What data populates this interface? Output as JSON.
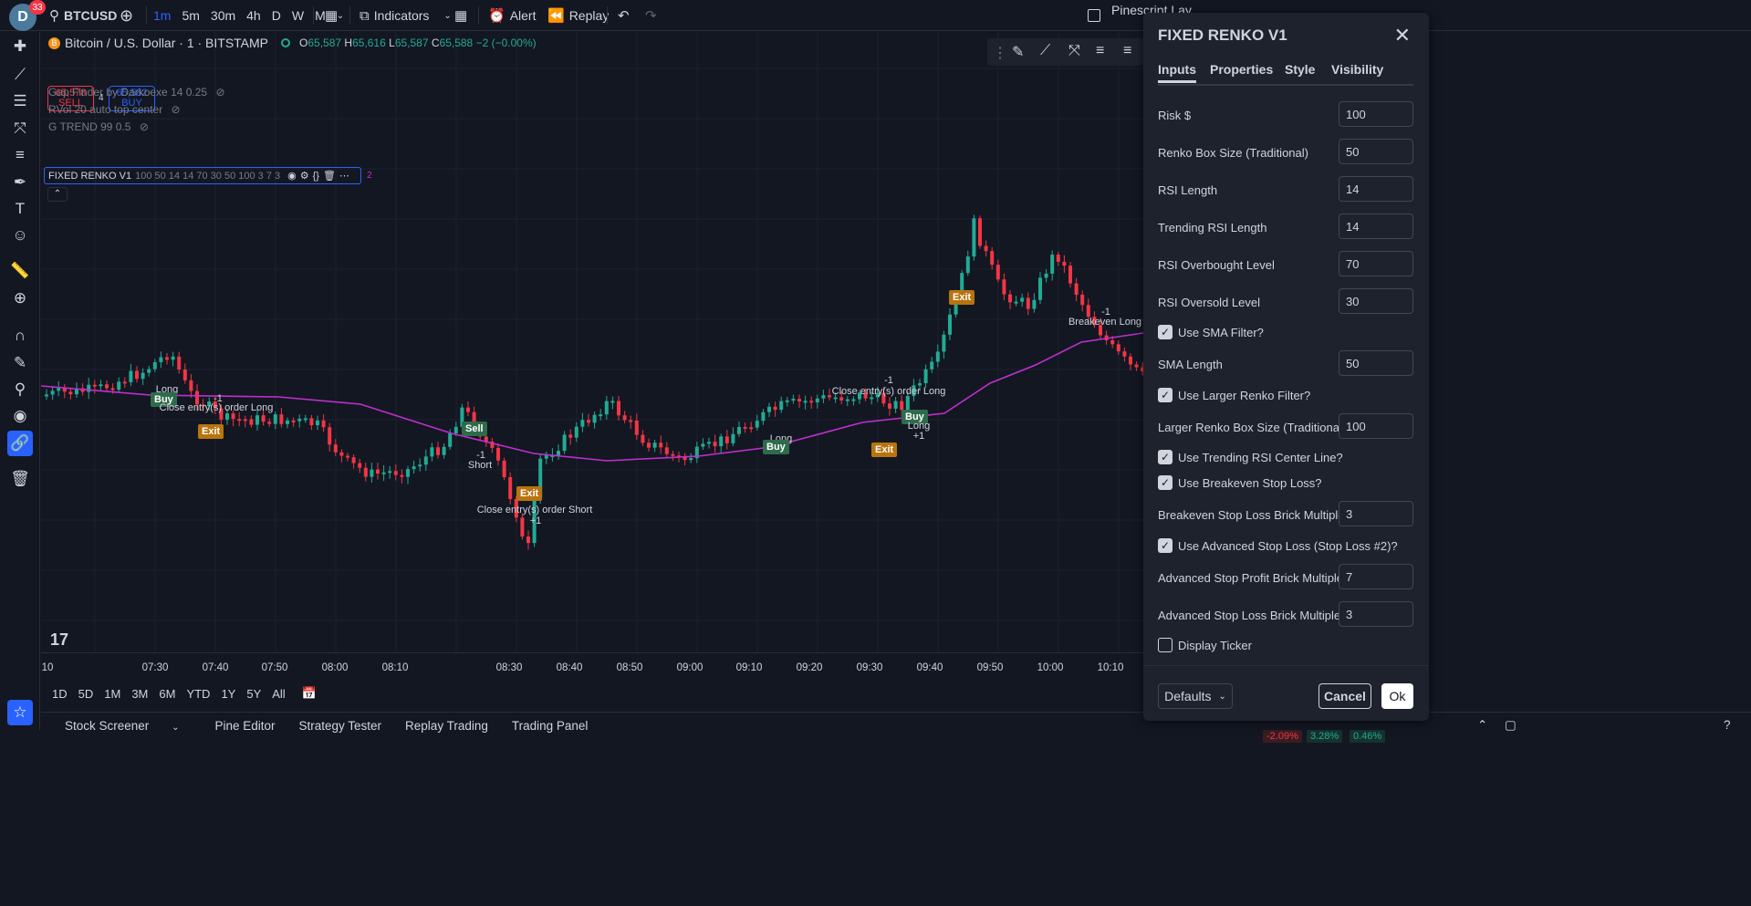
{
  "header": {
    "avatar_letter": "D",
    "notifications": "33",
    "symbol": "BTCUSD",
    "intervals": [
      "1m",
      "5m",
      "30m",
      "4h",
      "D",
      "W",
      "M"
    ],
    "active_interval": "1m",
    "indicators_label": "Indicators",
    "alert_label": "Alert",
    "replay_label": "Replay",
    "pinescript_label": "Pinescript Lay"
  },
  "chart": {
    "title": "Bitcoin / U.S. Dollar · 1 · BITSTAMP",
    "ohlc": [
      {
        "label": "O",
        "value": "65,587"
      },
      {
        "label": "H",
        "value": "65,616"
      },
      {
        "label": "L",
        "value": "65,587"
      },
      {
        "label": "C",
        "value": "65,588"
      }
    ],
    "change": "−2 (−0.00%)",
    "sell_price": "65,578",
    "sell_label": "SELL",
    "spread": "4",
    "buy_price": "65,582",
    "buy_label": "BUY",
    "indicators": [
      "Gap Finder by Darkoexe 14 0.25",
      "RVol 20 auto top center",
      "G TREND 99 0.5"
    ],
    "active_indicator": {
      "name": "FIXED RENKO V1",
      "params": "100 50 14 14 70 30 50 100 3 7 3",
      "count": "2"
    },
    "time_labels": [
      "10",
      "07:30",
      "07:40",
      "07:50",
      "08:00",
      "08:10",
      "08:30",
      "08:40",
      "08:50",
      "09:00",
      "09:10",
      "09:20",
      "09:30",
      "09:40",
      "09:50",
      "10:00",
      "10:10"
    ],
    "annotations": {
      "long1": "Long",
      "buy1": "Buy",
      "close_long_1": "Close entry(s) order Long",
      "minus1_a": "-1",
      "exit1": "Exit",
      "sell1": "Sell",
      "minus1_b": "-1",
      "short1": "Short",
      "exit2": "Exit",
      "close_short": "Close entry(s) order Short",
      "plus1_a": "+1",
      "long2": "Long",
      "buy2": "Buy",
      "plus1_b": "+1",
      "close_long_2": "Close entry(s) order Long",
      "minus1_c": "-1",
      "exit3": "Exit",
      "buy3": "Buy",
      "long3": "Long",
      "plus1_c": "+1",
      "exit4": "Exit",
      "minus1_d": "-1",
      "breakeven_long": "Breakeven Long"
    }
  },
  "ranges": [
    "1D",
    "5D",
    "1M",
    "3M",
    "6M",
    "YTD",
    "1Y",
    "5Y",
    "All"
  ],
  "bottom_tabs": [
    "Stock Screener",
    "Pine Editor",
    "Strategy Tester",
    "Replay Trading",
    "Trading Panel"
  ],
  "bottom_pct": [
    "-2.09%",
    "3.28%",
    "0.46%"
  ],
  "dialog": {
    "title": "FIXED RENKO V1",
    "tabs": [
      "Inputs",
      "Properties",
      "Style",
      "Visibility"
    ],
    "fields": {
      "risk_label": "Risk $",
      "risk_value": "100",
      "box_label": "Renko Box Size (Traditional)",
      "box_value": "50",
      "rsi_label": "RSI Length",
      "rsi_value": "14",
      "trsi_label": "Trending RSI Length",
      "trsi_value": "14",
      "ob_label": "RSI Overbought Level",
      "ob_value": "70",
      "os_label": "RSI Oversold Level",
      "os_value": "30",
      "sma_filter_label": "Use SMA Filter?",
      "sma_len_label": "SMA Length",
      "sma_len_value": "50",
      "larger_filter_label": "Use Larger Renko Filter?",
      "larger_box_label": "Larger Renko Box Size (Traditional)",
      "larger_box_value": "100",
      "trend_center_label": "Use Trending RSI Center Line?",
      "breakeven_label": "Use Breakeven Stop Loss?",
      "be_mult_label": "Breakeven Stop Loss Brick Multiple",
      "be_mult_value": "3",
      "adv_stop_label": "Use Advanced Stop Loss (Stop Loss #2)?",
      "adv_profit_label": "Advanced Stop Profit Brick Multiple",
      "adv_profit_value": "7",
      "adv_loss_label": "Advanced Stop Loss Brick Multiple",
      "adv_loss_value": "3",
      "display_ticker_label": "Display Ticker"
    },
    "defaults_label": "Defaults",
    "cancel_label": "Cancel",
    "ok_label": "Ok"
  },
  "colors": {
    "accent": "#2962ff",
    "up": "#22ab94",
    "down": "#f23645",
    "sma_line": "#c22ed0",
    "exit_tag": "#b8740f",
    "buy_tag": "#2e6b4b"
  }
}
